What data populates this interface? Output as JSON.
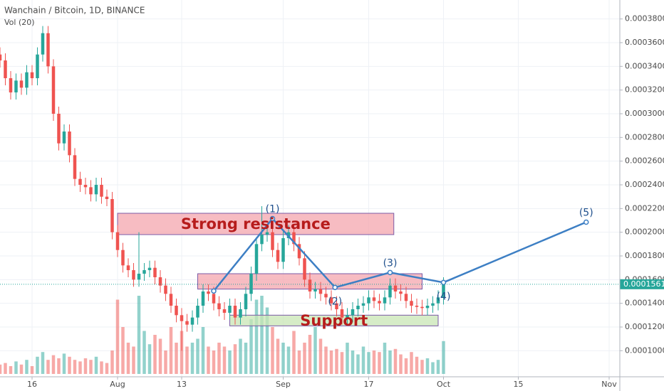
{
  "chart_data": {
    "type": "candlestick",
    "title": "Wanchain / Bitcoin, 1D, BINANCE",
    "subtitle": "Vol (20)",
    "x": [
      -6,
      -5,
      -4,
      -3,
      -2,
      -1,
      0,
      1,
      2,
      3,
      4,
      5,
      6,
      7,
      8,
      9,
      10,
      11,
      12,
      13,
      14,
      15,
      16,
      17,
      18,
      19,
      20,
      21,
      22,
      23,
      24,
      25,
      26,
      27,
      28,
      29,
      30,
      31,
      32,
      33,
      34,
      35,
      36,
      37,
      38,
      39,
      40,
      41,
      42,
      43,
      44,
      45,
      46,
      47,
      48,
      49,
      50,
      51,
      52,
      53,
      54,
      55,
      56,
      57,
      58,
      59,
      60,
      61,
      62,
      63,
      64,
      65,
      66,
      67,
      68,
      69,
      70,
      71,
      72,
      73,
      74,
      75,
      76,
      77
    ],
    "open": [
      0.00035,
      0.000345,
      0.00033,
      0.000318,
      0.000328,
      0.000322,
      0.000335,
      0.00033,
      0.00035,
      0.000368,
      0.00034,
      0.0003,
      0.000275,
      0.000285,
      0.000265,
      0.000245,
      0.00024,
      0.000238,
      0.000232,
      0.00024,
      0.00023,
      0.000228,
      0.0002,
      0.000185,
      0.000172,
      0.000168,
      0.00016,
      0.000165,
      0.000168,
      0.00017,
      0.000162,
      0.000155,
      0.000148,
      0.000138,
      0.00013,
      0.000125,
      0.000122,
      0.000128,
      0.000138,
      0.00015,
      0.000148,
      0.00014,
      0.000135,
      0.000132,
      0.000138,
      0.000128,
      0.000135,
      0.000148,
      0.000165,
      0.00019,
      0.000198,
      0.0002,
      0.000185,
      0.000175,
      0.000195,
      0.0002,
      0.00019,
      0.000178,
      0.00016,
      0.00015,
      0.000152,
      0.000148,
      0.000145,
      0.00014,
      0.000135,
      0.000128,
      0.00013,
      0.000135,
      0.000138,
      0.00014,
      0.000145,
      0.000142,
      0.00014,
      0.000145,
      0.000155,
      0.00015,
      0.000148,
      0.000142,
      0.000138,
      0.000137,
      0.000136,
      0.000138,
      0.00014,
      0.000145
    ],
    "high": [
      0.000356,
      0.000351,
      0.000336,
      0.000334,
      0.000334,
      0.000341,
      0.000341,
      0.000356,
      0.000374,
      0.000374,
      0.000346,
      0.000306,
      0.000291,
      0.000291,
      0.000271,
      0.000251,
      0.000246,
      0.000244,
      0.000246,
      0.000246,
      0.000236,
      0.000234,
      0.000206,
      0.000191,
      0.000178,
      0.000174,
      0.0002,
      0.000174,
      0.000176,
      0.000176,
      0.000168,
      0.000161,
      0.000154,
      0.000144,
      0.000136,
      0.000131,
      0.000134,
      0.000144,
      0.000156,
      0.000156,
      0.000154,
      0.000146,
      0.000141,
      0.000144,
      0.000144,
      0.000141,
      0.000154,
      0.000171,
      0.000196,
      0.000222,
      0.000206,
      0.000206,
      0.000191,
      0.000201,
      0.000206,
      0.000206,
      0.000196,
      0.000184,
      0.000166,
      0.000158,
      0.000158,
      0.000154,
      0.000151,
      0.000146,
      0.000141,
      0.000136,
      0.000141,
      0.000144,
      0.000146,
      0.000151,
      0.000151,
      0.000148,
      0.000151,
      0.000161,
      0.000161,
      0.000156,
      0.000154,
      0.000148,
      0.000144,
      0.000143,
      0.000144,
      0.000146,
      0.000151,
      0.000162
    ],
    "low": [
      0.000339,
      0.000324,
      0.000312,
      0.000312,
      0.000316,
      0.000316,
      0.000324,
      0.000324,
      0.000344,
      0.000334,
      0.000294,
      0.000269,
      0.000269,
      0.000259,
      0.000239,
      0.000234,
      0.000232,
      0.000226,
      0.000226,
      0.000224,
      0.000222,
      0.000194,
      0.000179,
      0.000166,
      0.000162,
      0.000154,
      0.000154,
      0.000159,
      0.000162,
      0.000156,
      0.000149,
      0.000142,
      0.000132,
      0.000124,
      0.0001,
      0.000116,
      0.000116,
      0.000122,
      0.000132,
      0.000142,
      0.000134,
      0.000129,
      0.000126,
      0.000126,
      0.000122,
      0.000122,
      0.000129,
      0.000142,
      0.000159,
      0.000184,
      0.000192,
      0.000179,
      0.000169,
      0.000169,
      0.000189,
      0.000184,
      0.000172,
      0.000154,
      0.000144,
      0.000144,
      0.000142,
      0.000139,
      0.000134,
      0.000129,
      0.000122,
      0.000122,
      0.000124,
      0.000129,
      0.000132,
      0.000134,
      0.000136,
      0.000134,
      0.000134,
      0.000139,
      0.000144,
      0.000142,
      0.000136,
      0.000132,
      0.000131,
      0.00013,
      0.00013,
      0.000132,
      0.000134,
      0.000139
    ],
    "close": [
      0.000345,
      0.00033,
      0.000318,
      0.000328,
      0.000322,
      0.000335,
      0.00033,
      0.00035,
      0.000368,
      0.00034,
      0.0003,
      0.000275,
      0.000285,
      0.000265,
      0.000245,
      0.00024,
      0.000238,
      0.000232,
      0.00024,
      0.00023,
      0.000228,
      0.0002,
      0.000185,
      0.000172,
      0.000168,
      0.00016,
      0.000165,
      0.000168,
      0.00017,
      0.000162,
      0.000155,
      0.000148,
      0.000138,
      0.00013,
      0.000125,
      0.000122,
      0.000128,
      0.000138,
      0.00015,
      0.000148,
      0.00014,
      0.000135,
      0.000132,
      0.000138,
      0.000128,
      0.000135,
      0.000148,
      0.000165,
      0.00019,
      0.000198,
      0.0002,
      0.000185,
      0.000175,
      0.000195,
      0.0002,
      0.00019,
      0.000178,
      0.00016,
      0.00015,
      0.000152,
      0.000148,
      0.000145,
      0.00014,
      0.000135,
      0.000128,
      0.00013,
      0.000135,
      0.000138,
      0.00014,
      0.000145,
      0.000142,
      0.00014,
      0.000145,
      0.000155,
      0.00015,
      0.000148,
      0.000142,
      0.000138,
      0.000137,
      0.000136,
      0.000138,
      0.00014,
      0.000145,
      0.000156
    ],
    "volume": [
      12,
      14,
      10,
      16,
      12,
      18,
      10,
      22,
      28,
      18,
      24,
      20,
      26,
      22,
      18,
      16,
      20,
      18,
      22,
      16,
      14,
      30,
      95,
      60,
      40,
      35,
      100,
      55,
      38,
      50,
      45,
      30,
      60,
      40,
      55,
      35,
      40,
      45,
      60,
      35,
      30,
      40,
      35,
      30,
      38,
      45,
      40,
      70,
      95,
      100,
      85,
      60,
      45,
      40,
      35,
      55,
      30,
      40,
      50,
      60,
      45,
      35,
      30,
      32,
      28,
      40,
      30,
      25,
      35,
      28,
      30,
      28,
      40,
      30,
      32,
      25,
      20,
      28,
      22,
      18,
      20,
      15,
      18,
      42
    ],
    "up_color": "#26a69a",
    "down_color": "#ef5350",
    "xlim": [
      -6,
      110
    ],
    "xticks": [
      {
        "value": 0,
        "label": "16"
      },
      {
        "value": 16,
        "label": "Aug"
      },
      {
        "value": 28,
        "label": "13"
      },
      {
        "value": 47,
        "label": "Sep"
      },
      {
        "value": 63,
        "label": "17"
      },
      {
        "value": 77,
        "label": "Oct"
      },
      {
        "value": 91,
        "label": "15"
      },
      {
        "value": 108,
        "label": "Nov"
      }
    ],
    "ylim": [
      7.8e-05,
      0.000396
    ],
    "yticks": [
      {
        "value": 0.0001,
        "label": "0.0001000"
      },
      {
        "value": 0.00012,
        "label": "0.0001200"
      },
      {
        "value": 0.00014,
        "label": "0.0001400"
      },
      {
        "value": 0.00016,
        "label": "0.0001600"
      },
      {
        "value": 0.00018,
        "label": "0.0001800"
      },
      {
        "value": 0.0002,
        "label": "0.0002000"
      },
      {
        "value": 0.00022,
        "label": "0.0002200"
      },
      {
        "value": 0.00024,
        "label": "0.0002400"
      },
      {
        "value": 0.00026,
        "label": "0.0002600"
      },
      {
        "value": 0.00028,
        "label": "0.0002800"
      },
      {
        "value": 0.0003,
        "label": "0.0003000"
      },
      {
        "value": 0.00032,
        "label": "0.0003200"
      },
      {
        "value": 0.00034,
        "label": "0.0003400"
      },
      {
        "value": 0.00036,
        "label": "0.0003600"
      },
      {
        "value": 0.00038,
        "label": "0.0003800"
      }
    ],
    "y2lim": [
      0,
      100
    ],
    "grid": true,
    "last_price": {
      "value": 0.0001561,
      "label": "0.0001561"
    },
    "boxes": [
      {
        "label": "Strong resistance",
        "x": [
          16,
          67.7
        ],
        "y": [
          0.000198,
          0.000216
        ],
        "color": "#f4a6ad"
      },
      {
        "x": [
          31,
          73
        ],
        "y": [
          0.000152,
          0.000165
        ],
        "color": "#f4a6ad"
      },
      {
        "label": "Support",
        "x": [
          37,
          76
        ],
        "y": [
          0.000121,
          0.00013
        ],
        "color": "#c8e6b4"
      }
    ],
    "wave": {
      "x": [
        34,
        45,
        56.7,
        67,
        77,
        103.7
      ],
      "y": [
        0.0001504,
        0.0002115,
        0.0001534,
        0.000166,
        0.0001576,
        0.0002085
      ],
      "labels": [
        null,
        "(1)",
        "(2)",
        "(3)",
        "(4)",
        "(5)"
      ],
      "color": "#3d7fc4"
    }
  }
}
